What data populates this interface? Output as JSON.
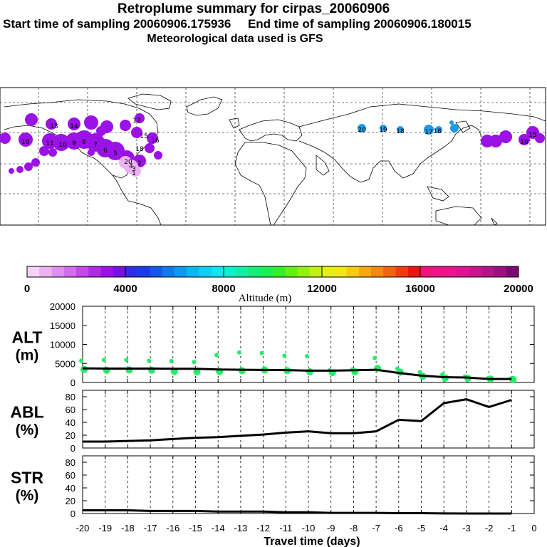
{
  "header": {
    "title": "Retroplume summary for cirpas_20060906",
    "sampling_line": "Start time of sampling 20060906.175936     End time of sampling 20060906.180015",
    "met_line": "Meteorological data used is GFS"
  },
  "colors": {
    "colorbar": [
      "#f5d2f6",
      "#ecb1f2",
      "#e08ff0",
      "#d46ced",
      "#c449ea",
      "#b02ae6",
      "#9a12e6",
      "#7a0fe6",
      "#2e2ee8",
      "#1c3ae6",
      "#1456ea",
      "#0f79ee",
      "#0a9af0",
      "#0ab6f4",
      "#0cd0f6",
      "#0ee6f0",
      "#0ef0cc",
      "#10f0a4",
      "#12f07a",
      "#1cf050",
      "#34f02a",
      "#62f014",
      "#94f012",
      "#c2f012",
      "#e2f012",
      "#f4e810",
      "#f6cc10",
      "#f6aa10",
      "#f48810",
      "#f26410",
      "#f03c10",
      "#ee1414",
      "#f0147a",
      "#ee1488",
      "#e8148e",
      "#dc1492",
      "#cc1490",
      "#b4148a",
      "#9c1080",
      "#7c0a70"
    ],
    "model_points": "#22ee66",
    "line": "#000000"
  },
  "colorbar": {
    "tick_labels": [
      "0",
      "4000",
      "8000",
      "12000",
      "16000",
      "20000"
    ],
    "label": "Altitude (m)"
  },
  "map": {
    "plume_numbers": [
      "13",
      "14",
      "15",
      "16",
      "17",
      "18",
      "19",
      "20",
      "11",
      "10",
      "9",
      "8",
      "7",
      "6",
      "5",
      "4",
      "3",
      "2",
      "1",
      "18",
      "17",
      "16",
      "15",
      "20",
      "19",
      "18"
    ]
  },
  "chart_data": [
    {
      "type": "line",
      "panel_label": "ALT",
      "panel_unit": "(m)",
      "x": [
        -20,
        -19,
        -18,
        -17,
        -16,
        -15,
        -14,
        -13,
        -12,
        -11,
        -10,
        -9,
        -8,
        -7,
        -6,
        -5,
        -4,
        -3,
        -2,
        -1
      ],
      "series": [
        {
          "name": "mean altitude",
          "values": [
            3700,
            3650,
            3650,
            3650,
            3600,
            3600,
            3400,
            3350,
            3300,
            3250,
            3100,
            3100,
            3200,
            3350,
            2500,
            1800,
            1400,
            1300,
            900,
            900
          ]
        }
      ],
      "scatter_points": [
        {
          "x": -20,
          "y": [
            5700,
            3400
          ]
        },
        {
          "x": -19,
          "y": [
            5900,
            3200
          ]
        },
        {
          "x": -18,
          "y": [
            5900,
            3300
          ]
        },
        {
          "x": -17,
          "y": [
            5700,
            3200
          ]
        },
        {
          "x": -16,
          "y": [
            5600,
            2900
          ]
        },
        {
          "x": -15,
          "y": [
            5400,
            2800
          ]
        },
        {
          "x": -14,
          "y": [
            7200,
            2900
          ]
        },
        {
          "x": -13,
          "y": [
            7900,
            3100
          ]
        },
        {
          "x": -12,
          "y": [
            7700,
            3300
          ]
        },
        {
          "x": -11,
          "y": [
            7000,
            3100
          ]
        },
        {
          "x": -10,
          "y": [
            6900,
            2800
          ]
        },
        {
          "x": -9,
          "y": [
            3200,
            2600
          ]
        },
        {
          "x": -8,
          "y": [
            3400,
            2800
          ]
        },
        {
          "x": -7,
          "y": [
            6400,
            3700
          ]
        },
        {
          "x": -6,
          "y": [
            3600,
            2700
          ]
        },
        {
          "x": -5,
          "y": [
            2700,
            1600
          ]
        },
        {
          "x": -4,
          "y": [
            2100,
            1200
          ]
        },
        {
          "x": -3,
          "y": [
            1600,
            1100
          ]
        },
        {
          "x": -2,
          "y": [
            1100,
            900
          ]
        },
        {
          "x": -1,
          "y": [
            1000,
            800
          ]
        }
      ],
      "yticks": [
        "20000",
        "15000",
        "10000",
        "5000",
        "0"
      ],
      "ylim": [
        0,
        20000
      ]
    },
    {
      "type": "line",
      "panel_label": "ABL",
      "panel_unit": "(%)",
      "x": [
        -20,
        -19,
        -18,
        -17,
        -16,
        -15,
        -14,
        -13,
        -12,
        -11,
        -10,
        -9,
        -8,
        -7,
        -6,
        -5,
        -4,
        -3,
        -2,
        -1
      ],
      "series": [
        {
          "name": "fraction in ABL",
          "values": [
            10,
            10,
            11,
            12,
            14,
            16,
            17,
            19,
            21,
            24,
            26,
            23,
            23,
            26,
            44,
            42,
            70,
            76,
            64,
            75
          ]
        }
      ],
      "yticks": [
        "80",
        "60",
        "40",
        "20",
        "0"
      ],
      "ylim": [
        0,
        90
      ]
    },
    {
      "type": "line",
      "panel_label": "STR",
      "panel_unit": "(%)",
      "x": [
        -20,
        -19,
        -18,
        -17,
        -16,
        -15,
        -14,
        -13,
        -12,
        -11,
        -10,
        -9,
        -8,
        -7,
        -6,
        -5,
        -4,
        -3,
        -2,
        -1
      ],
      "series": [
        {
          "name": "fraction in stratosphere",
          "values": [
            5,
            5,
            5,
            4,
            4,
            4,
            3,
            3,
            3,
            2,
            2,
            1,
            1,
            1,
            0.5,
            0.5,
            0.2,
            0,
            0,
            0
          ]
        }
      ],
      "yticks": [
        "80",
        "60",
        "40",
        "20",
        "0"
      ],
      "ylim": [
        0,
        90
      ]
    }
  ],
  "xaxis": {
    "tick_labels": [
      "-20",
      "-19",
      "-18",
      "-17",
      "-16",
      "-15",
      "-14",
      "-13",
      "-12",
      "-11",
      "-10",
      "-9",
      "-8",
      "-7",
      "-6",
      "-5",
      "-4",
      "-3",
      "-2",
      "-1",
      "0"
    ],
    "label": "Travel time (days)"
  }
}
